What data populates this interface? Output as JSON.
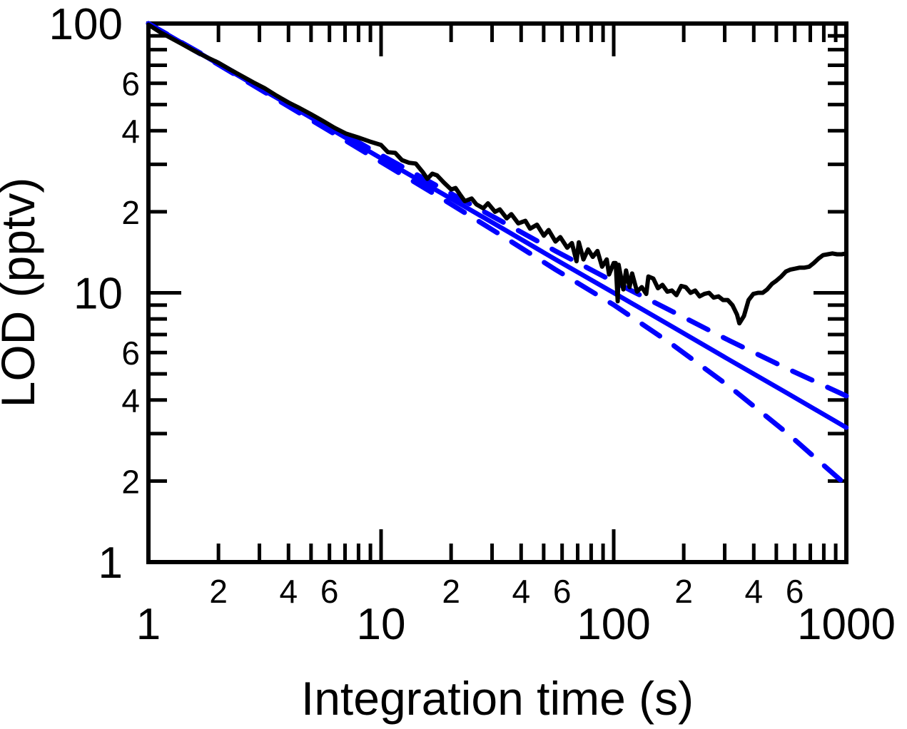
{
  "figure": {
    "background": "#ffffff",
    "xlabel": "Integration time (s)",
    "ylabel": "LOD (pptv)"
  },
  "chart_data": {
    "type": "line",
    "title": "",
    "xlabel": "Integration time (s)",
    "ylabel": "LOD (pptv)",
    "x_scale": "log",
    "y_scale": "log",
    "xlim": [
      1,
      1000
    ],
    "ylim": [
      1,
      100
    ],
    "grid": false,
    "legend": "none",
    "axes": {
      "x": {
        "major_ticks": [
          1,
          10,
          100,
          1000
        ],
        "major_labels": [
          "1",
          "10",
          "100",
          "1000"
        ],
        "minor_ticks": [
          2,
          3,
          4,
          5,
          6,
          7,
          8,
          9,
          20,
          30,
          40,
          50,
          60,
          70,
          80,
          90,
          200,
          300,
          400,
          500,
          600,
          700,
          800,
          900
        ],
        "labeled_minor_ticks": [
          2,
          4,
          6,
          20,
          40,
          60,
          200,
          400,
          600
        ],
        "labeled_minor_text": [
          "2",
          "4",
          "6",
          "2",
          "4",
          "6",
          "2",
          "4",
          "6"
        ]
      },
      "y": {
        "major_ticks": [
          1,
          10,
          100
        ],
        "major_labels": [
          "1",
          "10",
          "100"
        ],
        "minor_ticks": [
          2,
          3,
          4,
          5,
          6,
          7,
          8,
          9,
          20,
          30,
          40,
          50,
          60,
          70,
          80,
          90
        ],
        "labeled_minor_ticks": [
          2,
          4,
          6,
          20,
          40,
          60
        ],
        "labeled_minor_text": [
          "2",
          "4",
          "6",
          "2",
          "4",
          "6"
        ]
      }
    },
    "colors": {
      "measured": "#000000",
      "model": "#0000fe"
    },
    "series": [
      {
        "name": "measured-lod",
        "description": "Measured LOD vs integration time (noisy black curve, minimum ~7.7 pptv near 350 s, rises to ~14 pptv at 1000 s)",
        "color": "#000000",
        "style": "solid",
        "width": 6,
        "points": [
          [
            1.0,
            99
          ],
          [
            1.12,
            93
          ],
          [
            1.26,
            88
          ],
          [
            1.41,
            83.5
          ],
          [
            1.58,
            79
          ],
          [
            1.78,
            75
          ],
          [
            2.0,
            71.5
          ],
          [
            2.24,
            67.5
          ],
          [
            2.51,
            64
          ],
          [
            2.82,
            60.5
          ],
          [
            3.16,
            57.5
          ],
          [
            3.55,
            54
          ],
          [
            3.98,
            51
          ],
          [
            4.47,
            48.5
          ],
          [
            5.01,
            46
          ],
          [
            5.62,
            43.5
          ],
          [
            6.31,
            41
          ],
          [
            7.08,
            39
          ],
          [
            7.94,
            37.8
          ],
          [
            8.91,
            36.5
          ],
          [
            10,
            35.4
          ],
          [
            10.7,
            33.3
          ],
          [
            11.5,
            33.1
          ],
          [
            12.3,
            31.1
          ],
          [
            13.2,
            30.4
          ],
          [
            14.1,
            30.2
          ],
          [
            15.1,
            28.1
          ],
          [
            15.8,
            26.5
          ],
          [
            16.6,
            27.7
          ],
          [
            17.4,
            27.3
          ],
          [
            18.6,
            25.7
          ],
          [
            20,
            24.2
          ],
          [
            20.9,
            24.5
          ],
          [
            21.9,
            23.1
          ],
          [
            22.9,
            21.9
          ],
          [
            24.5,
            22.4
          ],
          [
            25.7,
            21.3
          ],
          [
            27.5,
            20.6
          ],
          [
            28.8,
            21.5
          ],
          [
            30.9,
            20.0
          ],
          [
            32.4,
            20.4
          ],
          [
            34.7,
            18.9
          ],
          [
            36.3,
            19.6
          ],
          [
            38.9,
            18.1
          ],
          [
            41.7,
            18.5
          ],
          [
            43.7,
            17.3
          ],
          [
            46.8,
            17.9
          ],
          [
            50.1,
            16.3
          ],
          [
            52.5,
            17.1
          ],
          [
            56.2,
            15.5
          ],
          [
            58.9,
            16.1
          ],
          [
            63.1,
            14.7
          ],
          [
            66.1,
            15.3
          ],
          [
            69.2,
            13.1
          ],
          [
            70.8,
            15.4
          ],
          [
            74.1,
            13.3
          ],
          [
            77.6,
            14.5
          ],
          [
            81.3,
            13.6
          ],
          [
            85.1,
            14.3
          ],
          [
            89.1,
            12.5
          ],
          [
            93.3,
            13.3
          ],
          [
            95.5,
            11.7
          ],
          [
            100,
            12.9
          ],
          [
            102,
            12.9
          ],
          [
            104,
            9.3
          ],
          [
            105,
            12.7
          ],
          [
            110,
            10.3
          ],
          [
            113,
            12.1
          ],
          [
            117,
            10.5
          ],
          [
            120,
            11.8
          ],
          [
            126,
            10.1
          ],
          [
            132,
            10.5
          ],
          [
            138,
            9.9
          ],
          [
            141,
            11.5
          ],
          [
            148,
            11.3
          ],
          [
            155,
            10.4
          ],
          [
            162,
            10.7
          ],
          [
            170,
            10.1
          ],
          [
            178,
            10.2
          ],
          [
            186,
            9.8
          ],
          [
            195,
            10.6
          ],
          [
            204,
            10.5
          ],
          [
            214,
            10.0
          ],
          [
            224,
            10.2
          ],
          [
            234,
            9.7
          ],
          [
            245,
            9.9
          ],
          [
            257,
            10.0
          ],
          [
            269,
            9.6
          ],
          [
            282,
            9.7
          ],
          [
            295,
            9.4
          ],
          [
            309,
            9.4
          ],
          [
            324,
            9.0
          ],
          [
            339,
            8.3
          ],
          [
            347,
            7.7
          ],
          [
            363,
            8.2
          ],
          [
            380,
            9.4
          ],
          [
            398,
            9.9
          ],
          [
            417,
            10.0
          ],
          [
            437,
            10.0
          ],
          [
            457,
            10.3
          ],
          [
            479,
            10.8
          ],
          [
            501,
            11.1
          ],
          [
            525,
            11.5
          ],
          [
            550,
            12.0
          ],
          [
            575,
            12.2
          ],
          [
            603,
            12.3
          ],
          [
            631,
            12.4
          ],
          [
            661,
            12.4
          ],
          [
            692,
            12.5
          ],
          [
            724,
            12.9
          ],
          [
            759,
            13.4
          ],
          [
            794,
            13.8
          ],
          [
            832,
            13.9
          ],
          [
            871,
            14.0
          ],
          [
            912,
            13.9
          ],
          [
            955,
            13.9
          ],
          [
            1000,
            14.0
          ]
        ]
      },
      {
        "name": "sqrt-t-model",
        "description": "White-noise extrapolation LOD = 100/sqrt(t) (solid blue line)",
        "color": "#0000fe",
        "style": "solid",
        "width": 6.5,
        "points": [
          [
            1,
            100
          ],
          [
            1.78,
            75.0
          ],
          [
            3.16,
            56.2
          ],
          [
            5.62,
            42.2
          ],
          [
            10,
            31.6
          ],
          [
            17.8,
            23.7
          ],
          [
            31.6,
            17.8
          ],
          [
            56.2,
            13.3
          ],
          [
            100,
            10.0
          ],
          [
            178,
            7.5
          ],
          [
            316,
            5.62
          ],
          [
            562,
            4.22
          ],
          [
            1000,
            3.16
          ]
        ]
      },
      {
        "name": "model-upper-bound",
        "description": "Upper dashed blue bound, diverges from solid fit to ~4.1 pptv at 1000 s",
        "color": "#0000fe",
        "style": "dashed",
        "width": 7,
        "points": [
          [
            1,
            100
          ],
          [
            1.78,
            75.3
          ],
          [
            3.16,
            56.9
          ],
          [
            5.62,
            43.0
          ],
          [
            10,
            32.5
          ],
          [
            17.8,
            24.7
          ],
          [
            31.6,
            18.8
          ],
          [
            56.2,
            14.3
          ],
          [
            100,
            11.0
          ],
          [
            178,
            8.54
          ],
          [
            316,
            6.63
          ],
          [
            562,
            5.21
          ],
          [
            1000,
            4.14
          ]
        ]
      },
      {
        "name": "model-lower-bound",
        "description": "Lower dashed blue bound, diverges from solid fit to ~1.9 pptv at 1000 s",
        "color": "#0000fe",
        "style": "dashed",
        "width": 7,
        "points": [
          [
            1,
            100
          ],
          [
            1.78,
            74.7
          ],
          [
            3.16,
            55.6
          ],
          [
            5.62,
            41.3
          ],
          [
            10,
            30.6
          ],
          [
            17.8,
            22.7
          ],
          [
            31.6,
            16.7
          ],
          [
            56.2,
            12.2
          ],
          [
            100,
            9.02
          ],
          [
            178,
            6.44
          ],
          [
            316,
            4.47
          ],
          [
            562,
            2.99
          ],
          [
            1000,
            1.93
          ]
        ]
      }
    ]
  }
}
